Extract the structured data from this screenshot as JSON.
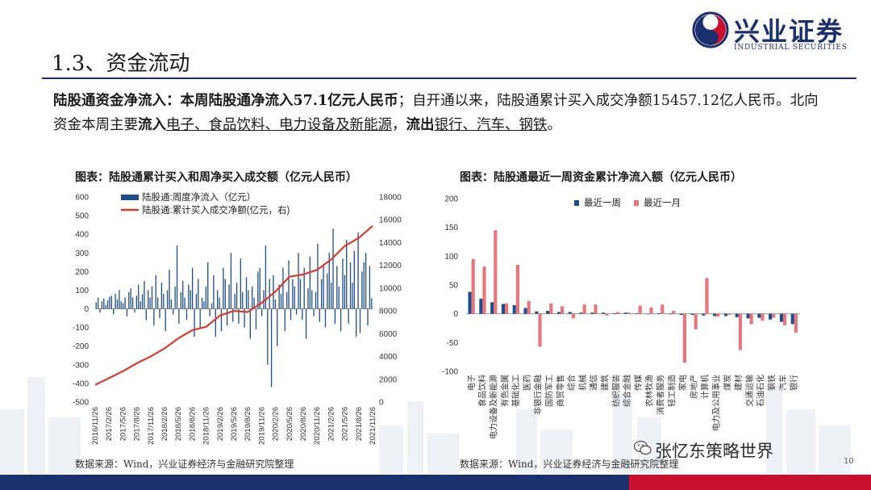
{
  "header": {
    "logo_cn": "兴业证券",
    "logo_en": "INDUSTRIAL SECURITIES",
    "section_title": "1.3、资金流动"
  },
  "summary": {
    "lead": "陆股通资金净流入：",
    "sentence1": "本周陆股通净流入57.1亿元人民币",
    "sentence2": "；自开通以来，陆股通累计买入成交净额15457.12亿人民币。北向资金本周主要",
    "in_label": "流入",
    "in_sectors": "电子、食品饮料、电力设备及新能源",
    "sep": "，",
    "out_label": "流出",
    "out_sectors": "银行、汽车、钢铁",
    "end": "。"
  },
  "footer": {
    "source_left": "数据来源：Wind，兴业证券经济与金融研究院整理",
    "source_right": "数据来源：Wind，兴业证券经济与金融研究院整理",
    "page_number": "10",
    "watermark": "张忆东策略世界"
  },
  "colors": {
    "navy": "#1c2f6d",
    "red": "#c8102e",
    "bar_blue": "#1f4e8c",
    "line_red": "#d93a2e",
    "bar_red": "#e8747c"
  },
  "chart_data": [
    {
      "type": "bar+line",
      "title": "图表：陆股通累计买入和周净买入成交额（亿元人民币）",
      "legend": [
        "陆股通:周度净流入（亿元）",
        "陆股通:累计买入成交净额(亿元，右)"
      ],
      "legend_position": "top-left",
      "y_left": {
        "min": -500,
        "max": 600,
        "ticks": [
          600,
          500,
          400,
          300,
          200,
          100,
          0,
          -100,
          -200,
          -300,
          -400,
          -500
        ]
      },
      "y_right": {
        "min": 0,
        "max": 18000,
        "ticks": [
          18000,
          16000,
          14000,
          12000,
          10000,
          8000,
          6000,
          4000,
          2000,
          0
        ]
      },
      "x_ticks": [
        "2016/11/26",
        "2017/2/26",
        "2017/5/26",
        "2017/8/26",
        "2017/11/26",
        "2018/2/26",
        "2018/5/26",
        "2018/8/26",
        "2018/11/26",
        "2019/2/26",
        "2019/5/26",
        "2019/8/26",
        "2019/11/26",
        "2020/2/26",
        "2020/5/26",
        "2020/8/26",
        "2020/11/26",
        "2021/2/26",
        "2021/5/26",
        "2021/8/26",
        "2021/11/26"
      ],
      "cumulative_series": {
        "name": "陆股通:累计买入成交净额(亿元，右)",
        "x": [
          0,
          1,
          2,
          3,
          4,
          5,
          6,
          7,
          8,
          9,
          10,
          11,
          12,
          13,
          14,
          15,
          16,
          17,
          18,
          19,
          20
        ],
        "values": [
          1500,
          2100,
          2700,
          3400,
          4000,
          4700,
          5600,
          6300,
          6600,
          7600,
          8000,
          7900,
          8700,
          9700,
          11000,
          11200,
          11600,
          12500,
          13700,
          14400,
          15457
        ]
      },
      "weekly_series": {
        "name": "陆股通:周度净流入（亿元）",
        "values": [
          35,
          60,
          -20,
          40,
          55,
          20,
          45,
          65,
          70,
          -30,
          80,
          50,
          100,
          40,
          30,
          60,
          -40,
          90,
          110,
          60,
          -20,
          70,
          130,
          40,
          80,
          150,
          -60,
          100,
          60,
          120,
          -90,
          180,
          60,
          -50,
          140,
          80,
          -120,
          100,
          210,
          50,
          -30,
          120,
          340,
          -80,
          90,
          150,
          60,
          -60,
          130,
          100,
          220,
          -150,
          80,
          160,
          -100,
          60,
          40,
          120,
          250,
          -40,
          30,
          180,
          -150,
          100,
          60,
          -120,
          220,
          160,
          -90,
          130,
          300,
          -70,
          80,
          140,
          -80,
          270,
          90,
          -100,
          170,
          100,
          -160,
          120,
          60,
          -110,
          200,
          220,
          -40,
          100,
          340,
          -300,
          160,
          -420,
          180,
          50,
          -200,
          130,
          80,
          220,
          -120,
          90,
          260,
          -60,
          160,
          120,
          -30,
          300,
          160,
          -60,
          220,
          -160,
          110,
          280,
          100,
          -40,
          90,
          350,
          -70,
          160,
          240,
          -100,
          190,
          300,
          140,
          430,
          -80,
          230,
          120,
          -120,
          270,
          180,
          370,
          -80,
          250,
          140,
          310,
          -150,
          410,
          -130,
          200,
          250,
          300,
          -90,
          230,
          57
        ]
      }
    },
    {
      "type": "bar",
      "title": "图表：陆股通最近一周资金累计净流入额（亿元人民币）",
      "legend": [
        "最近一周",
        "最近一月"
      ],
      "legend_position": "top",
      "ylim": [
        -100,
        200
      ],
      "y_ticks": [
        200,
        150,
        100,
        50,
        0,
        -50,
        -100
      ],
      "categories": [
        "电子",
        "食品饮料",
        "电力设备及新能源",
        "有色金属",
        "基础化工",
        "医药",
        "非银行金融",
        "国防军工",
        "商贸零售",
        "综合",
        "机械",
        "通信",
        "建筑",
        "纺织服装",
        "综合金融",
        "传媒",
        "农林牧渔",
        "消费者服务",
        "轻工制造",
        "家电",
        "房地产",
        "计算机",
        "电力及公用事业",
        "煤炭",
        "建材",
        "交通运输",
        "石油石化",
        "钢铁",
        "汽车",
        "银行"
      ],
      "series": [
        {
          "name": "最近一周",
          "values": [
            38,
            26,
            20,
            17,
            15,
            10,
            4,
            5,
            3,
            3,
            2,
            2,
            2,
            1,
            2,
            1,
            0,
            1,
            -1,
            -2,
            -2,
            -3,
            -4,
            -4,
            -6,
            -8,
            -7,
            -10,
            -14,
            -18
          ]
        },
        {
          "name": "最近一月",
          "values": [
            95,
            82,
            145,
            18,
            85,
            22,
            -57,
            18,
            13,
            -8,
            16,
            16,
            -3,
            3,
            2,
            14,
            11,
            16,
            5,
            -85,
            -27,
            62,
            -5,
            -2,
            -63,
            -18,
            -12,
            -7,
            -20,
            -33
          ]
        }
      ]
    }
  ]
}
